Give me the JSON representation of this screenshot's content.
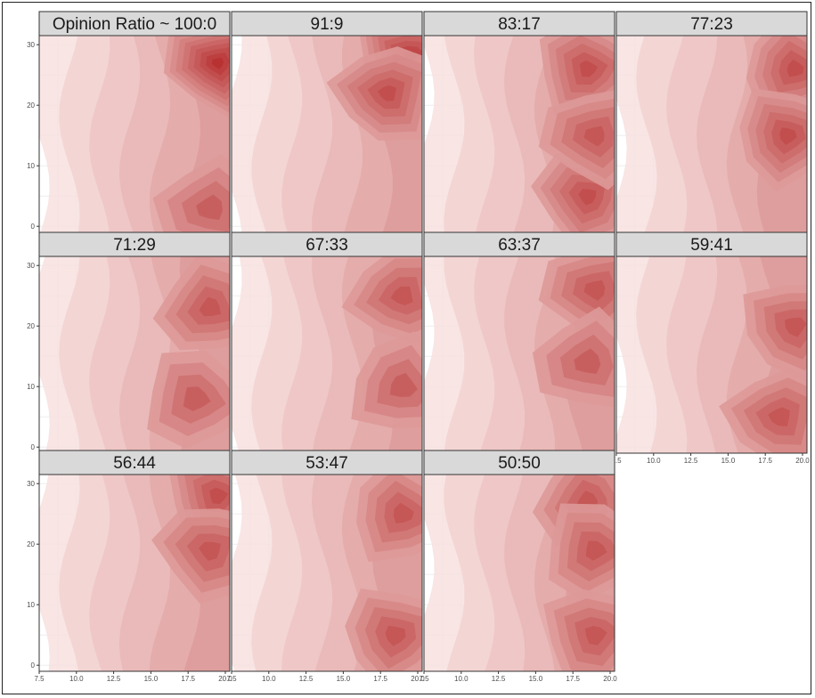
{
  "chart_data": {
    "type": "heatmap",
    "facet_titles": [
      "Opinion Ratio ~ 100:0",
      "91:9",
      "83:17",
      "77:23",
      "71:29",
      "67:33",
      "63:37",
      "59:41",
      "56:44",
      "53:47",
      "50:50"
    ],
    "x_ticks": [
      "7.5",
      "10.0",
      "12.5",
      "15.0",
      "17.5",
      "20.0"
    ],
    "y_ticks": [
      "0",
      "10",
      "20",
      "30"
    ],
    "xlim": [
      7.5,
      20.3
    ],
    "ylim": [
      -1,
      31.5
    ],
    "grid": true,
    "legend": "none",
    "panels": [
      {
        "hotspots": [
          {
            "x": 19.5,
            "y": 27,
            "level": 9
          },
          {
            "x": 19.0,
            "y": 3,
            "level": 4
          }
        ]
      },
      {
        "hotspots": [
          {
            "x": 19.5,
            "y": 28,
            "level": 8
          },
          {
            "x": 18.0,
            "y": 22,
            "level": 6
          }
        ]
      },
      {
        "hotspots": [
          {
            "x": 18.5,
            "y": 26,
            "level": 6
          },
          {
            "x": 18.5,
            "y": 5,
            "level": 6
          },
          {
            "x": 19.0,
            "y": 15,
            "level": 5
          }
        ]
      },
      {
        "hotspots": [
          {
            "x": 19.5,
            "y": 26,
            "level": 6
          },
          {
            "x": 19.0,
            "y": 15,
            "level": 6
          }
        ]
      },
      {
        "hotspots": [
          {
            "x": 19.0,
            "y": 23,
            "level": 5
          },
          {
            "x": 18.0,
            "y": 8,
            "level": 4
          }
        ]
      },
      {
        "hotspots": [
          {
            "x": 19.0,
            "y": 25,
            "level": 5
          },
          {
            "x": 19.0,
            "y": 10,
            "level": 4
          }
        ]
      },
      {
        "hotspots": [
          {
            "x": 19.0,
            "y": 26,
            "level": 5
          },
          {
            "x": 18.5,
            "y": 14,
            "level": 4
          }
        ]
      },
      {
        "hotspots": [
          {
            "x": 19.5,
            "y": 20,
            "level": 5
          },
          {
            "x": 18.5,
            "y": 5,
            "level": 5
          }
        ]
      },
      {
        "hotspots": [
          {
            "x": 19.5,
            "y": 28,
            "level": 6
          },
          {
            "x": 19.0,
            "y": 19,
            "level": 5
          }
        ]
      },
      {
        "hotspots": [
          {
            "x": 19.0,
            "y": 25,
            "level": 5
          },
          {
            "x": 18.5,
            "y": 5,
            "level": 5
          }
        ]
      },
      {
        "hotspots": [
          {
            "x": 18.5,
            "y": 27,
            "level": 5
          },
          {
            "x": 19.0,
            "y": 19,
            "level": 5
          },
          {
            "x": 19.0,
            "y": 5,
            "level": 5
          }
        ]
      }
    ],
    "colors": {
      "low": "#fbeceb",
      "high": "#b32626",
      "strip_fill": "#d9d9d9",
      "grid": "#ebebeb",
      "panel_border": "#333333",
      "tick_text": "#4d4d4d"
    }
  }
}
